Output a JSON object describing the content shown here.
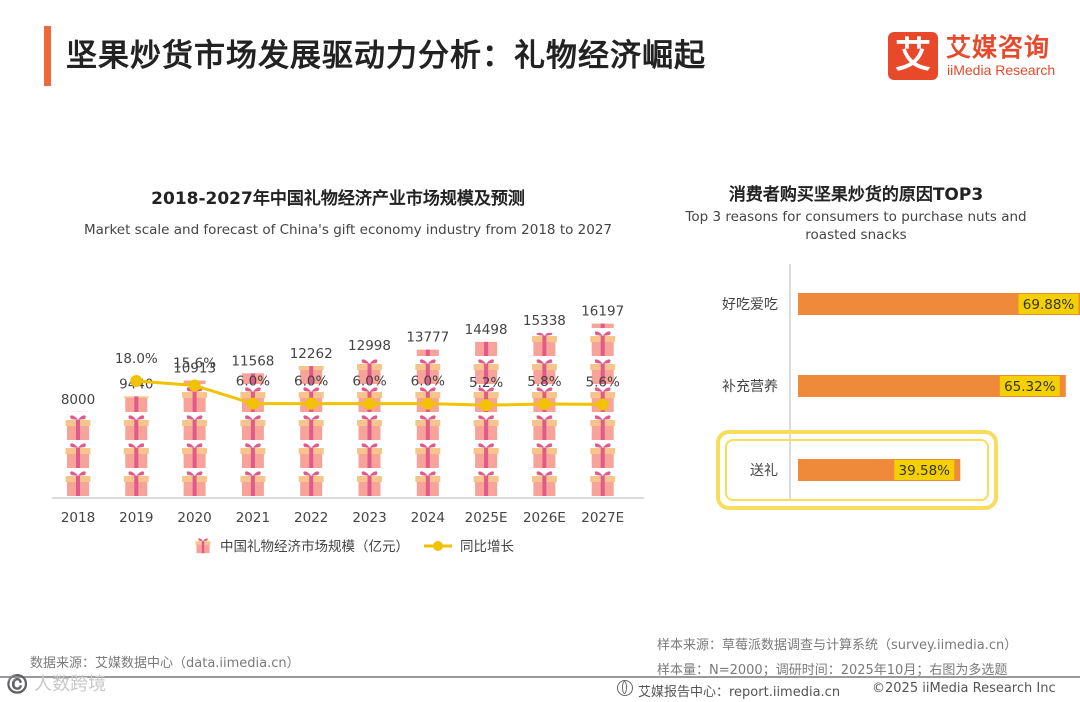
{
  "page": {
    "title": "坚果炒货市场发展驱动力分析：礼物经济崛起"
  },
  "logo": {
    "mark": "艾",
    "name_cn": "艾媒咨询",
    "name_en": "iiMedia Research"
  },
  "colors": {
    "accent": "#ee6a3a",
    "gift_pink": "#f7a39a",
    "gift_ribbon": "#e05a8a",
    "gift_box_top": "#f6c58c",
    "line": "#f2c200",
    "bar_orange": "#ee8a3a",
    "label_yellow": "#f5d000",
    "highlight_border": "#f8dc5c"
  },
  "chart_data": [
    {
      "type": "bar-line",
      "title": "2018-2027年中国礼物经济产业市场规模及预测",
      "subtitle": "Market scale and forecast of China's gift economy industry from 2018 to 2027",
      "categories": [
        "2018",
        "2019",
        "2020",
        "2021",
        "2022",
        "2023",
        "2024",
        "2025E",
        "2026E",
        "2027E"
      ],
      "series": [
        {
          "name": "中国礼物经济市场规模（亿元）",
          "kind": "pictogram-bar",
          "values": [
            8000,
            9440,
            10913,
            11568,
            12262,
            12998,
            13777,
            14498,
            15338,
            16197
          ],
          "labels": [
            "8000",
            "9440",
            "10913",
            "11568",
            "12262",
            "12998",
            "13777",
            "14498",
            "15338",
            "16197"
          ]
        },
        {
          "name": "同比增长",
          "kind": "line",
          "values": [
            null,
            18.0,
            15.6,
            6.0,
            6.0,
            6.0,
            6.0,
            5.2,
            5.8,
            5.6
          ],
          "labels": [
            "",
            "18.0%",
            "15.6%",
            "6.0%",
            "6.0%",
            "6.0%",
            "6.0%",
            "5.2%",
            "5.8%",
            "5.6%"
          ]
        }
      ],
      "ylim": [
        0,
        24000
      ],
      "y2lim": [
        0,
        120
      ],
      "units_per_gift": 2600,
      "legend_position": "bottom"
    },
    {
      "type": "bar",
      "orientation": "horizontal",
      "title": "消费者购买坚果炒货的原因TOP3",
      "subtitle_lines": [
        "Top 3 reasons for consumers to purchase nuts and",
        "roasted snacks"
      ],
      "categories": [
        "好吃爱吃",
        "补充营养",
        "送礼"
      ],
      "values": [
        69.88,
        65.32,
        39.58
      ],
      "labels": [
        "69.88%",
        "65.32%",
        "39.58%"
      ],
      "xlim": [
        0,
        100
      ],
      "highlight": "送礼"
    }
  ],
  "footer": {
    "source_left": "数据来源：艾媒数据中心（data.iimedia.cn）",
    "sample_source": "样本来源：草莓派数据调查与计算系统（survey.iimedia.cn）",
    "sample_size": "样本量：N=2000；调研时间：2025年10月；右图为多选题",
    "report_center": "艾媒报告中心：report.iimedia.cn",
    "copyright": "©2025  iiMedia Research  Inc",
    "watermark": "©️ 人数跨境"
  }
}
